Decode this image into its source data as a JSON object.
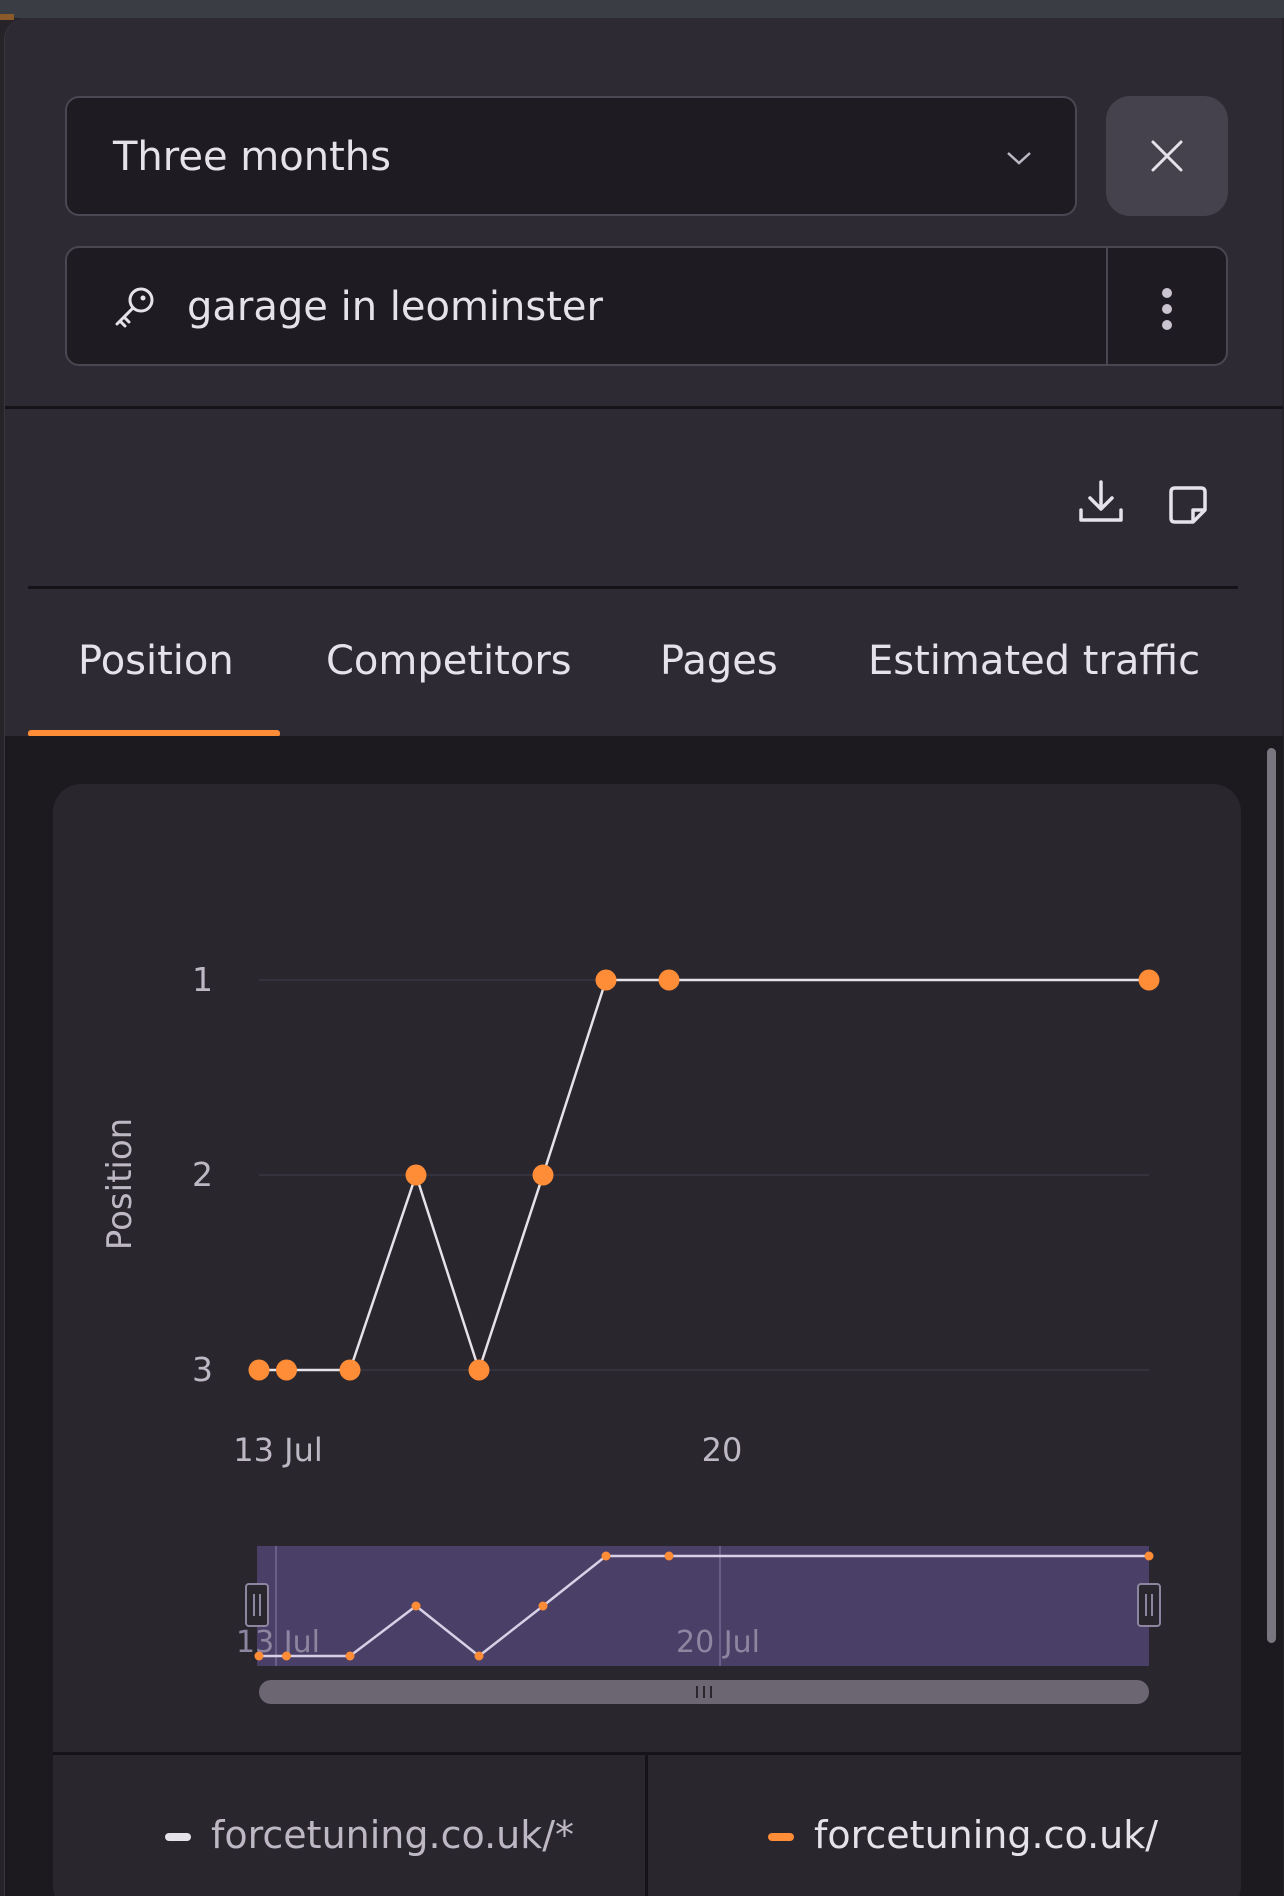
{
  "period_select": {
    "value": "Three months"
  },
  "keyword": {
    "text": "garage in leominster"
  },
  "tabs": [
    {
      "label": "Position",
      "active": true
    },
    {
      "label": "Competitors",
      "active": false
    },
    {
      "label": "Pages",
      "active": false
    },
    {
      "label": "Estimated traffic",
      "active": false
    }
  ],
  "colors": {
    "accent": "#ff8c36",
    "line": "#e6e2ea",
    "navigator": "#4a3f66"
  },
  "chart_data": {
    "type": "line",
    "ylabel": "Position",
    "ylim": [
      3,
      1
    ],
    "y_reversed": true,
    "yticks": [
      "1",
      "2",
      "3"
    ],
    "x_tick_labels": [
      "13 Jul",
      "20"
    ],
    "navigator_tick_labels": [
      "13 Jul",
      "20 Jul"
    ],
    "grid": true,
    "series": [
      {
        "name": "forcetuning.co.uk/",
        "color": "#ff8c36",
        "points": [
          {
            "x": "2023-07-13",
            "y": 3
          },
          {
            "x": "2023-07-13",
            "y": 3
          },
          {
            "x": "2023-07-14",
            "y": 3
          },
          {
            "x": "2023-07-15",
            "y": 2
          },
          {
            "x": "2023-07-16",
            "y": 3
          },
          {
            "x": "2023-07-17",
            "y": 2
          },
          {
            "x": "2023-07-18",
            "y": 1
          },
          {
            "x": "2023-07-19",
            "y": 1
          },
          {
            "x": "2023-07-27",
            "y": 1
          }
        ]
      }
    ],
    "legend": [
      {
        "label": "forcetuning.co.uk/*",
        "color": "#e6e2ea"
      },
      {
        "label": "forcetuning.co.uk/",
        "color": "#ff8c36"
      }
    ],
    "legend_position": "bottom"
  }
}
